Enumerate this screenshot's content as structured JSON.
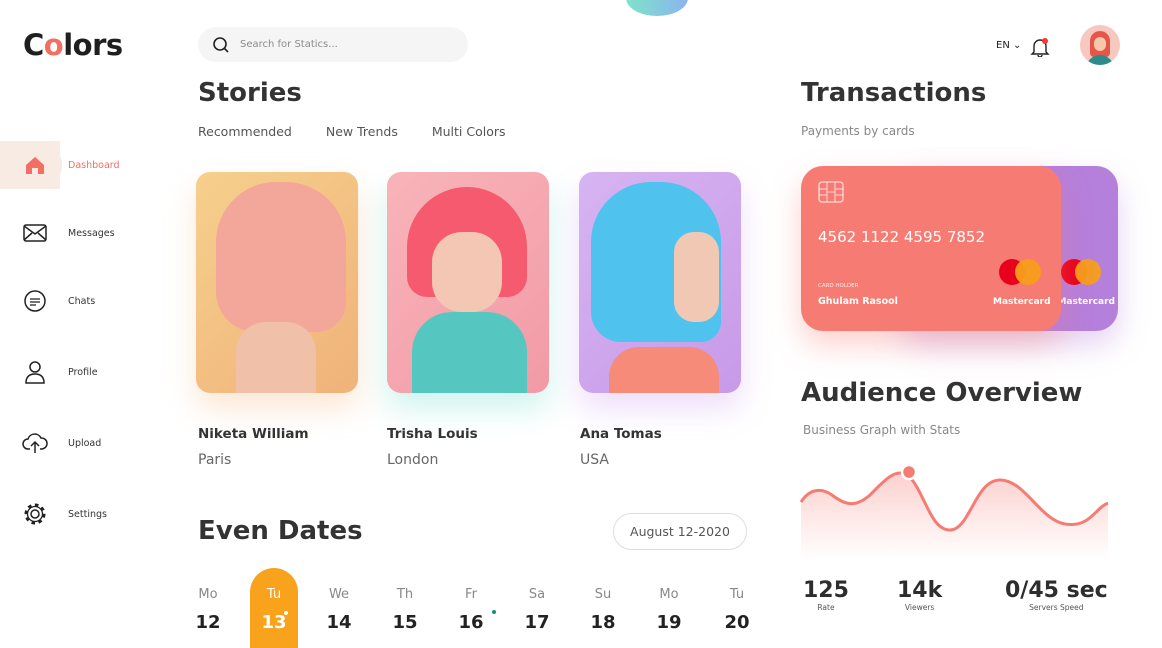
{
  "app": {
    "logo": "Colors"
  },
  "search": {
    "placeholder": "Search for Statics..."
  },
  "header": {
    "language": "EN"
  },
  "sidebar": {
    "items": [
      {
        "label": "Dashboard",
        "icon": "home-icon",
        "active": true
      },
      {
        "label": "Messages",
        "icon": "mail-icon"
      },
      {
        "label": "Chats",
        "icon": "chat-icon"
      },
      {
        "label": "Profile",
        "icon": "user-icon"
      },
      {
        "label": "Upload",
        "icon": "cloud-upload-icon"
      },
      {
        "label": "Settings",
        "icon": "gear-icon"
      }
    ]
  },
  "stories": {
    "title": "Stories",
    "tabs": [
      "Recommended",
      "New Trends",
      "Multi Colors"
    ],
    "items": [
      {
        "name": "Niketa William",
        "city": "Paris"
      },
      {
        "name": "Trisha Louis",
        "city": "London"
      },
      {
        "name": "Ana Tomas",
        "city": "USA"
      }
    ]
  },
  "events": {
    "title": "Even Dates",
    "date_button": "August 12-2020",
    "days": [
      {
        "dn": "Mo",
        "dd": "12"
      },
      {
        "dn": "Tu",
        "dd": "13",
        "selected": true
      },
      {
        "dn": "We",
        "dd": "14"
      },
      {
        "dn": "Th",
        "dd": "15"
      },
      {
        "dn": "Fr",
        "dd": "16"
      },
      {
        "dn": "Sa",
        "dd": "17"
      },
      {
        "dn": "Su",
        "dd": "18"
      },
      {
        "dn": "Mo",
        "dd": "19"
      },
      {
        "dn": "Tu",
        "dd": "20"
      }
    ]
  },
  "transactions": {
    "title": "Transactions",
    "subtitle": "Payments by cards",
    "card": {
      "number": "4562 1122 4595 7852",
      "holder_label": "CARD HOLDER",
      "holder": "Ghulam Rasool",
      "brand": "Mastercard",
      "color": "#f67c73"
    },
    "back_card": {
      "brand": "Mastercard",
      "color": "#b57fdc"
    }
  },
  "audience": {
    "title": "Audience Overview",
    "subtitle": "Business Graph with Stats",
    "stats": [
      {
        "value": "125",
        "label": "Rate"
      },
      {
        "value": "14k",
        "label": "Viewers"
      },
      {
        "value": "0/45 sec",
        "label": "Servers Speed"
      }
    ]
  },
  "colors": {
    "accent": "#f36f63",
    "selected_day": "#f9a21b"
  }
}
